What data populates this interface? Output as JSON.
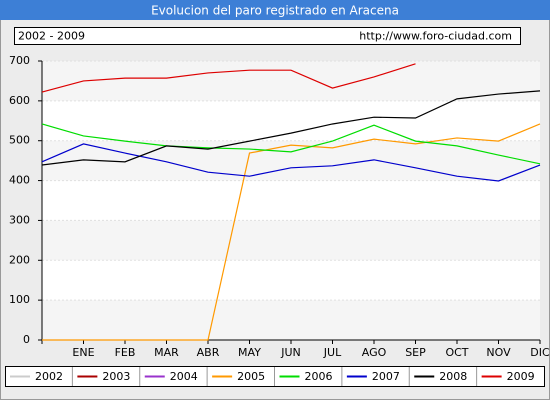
{
  "chart_data": {
    "type": "line",
    "title": "Evolucion del paro registrado en Aracena",
    "subtitle": "2002 - 2009",
    "source": "http://www.foro-ciudad.com",
    "categories": [
      null,
      "ENE",
      "FEB",
      "MAR",
      "ABR",
      "MAY",
      "JUN",
      "JUL",
      "AGO",
      "SEP",
      "OCT",
      "NOV",
      "DIC"
    ],
    "ylim": [
      0,
      700
    ],
    "yticks": [
      0,
      100,
      200,
      300,
      400,
      500,
      600,
      700
    ],
    "grid": true,
    "series": [
      {
        "name": "2002",
        "color": "#cccccc",
        "values": [
          null,
          null,
          null,
          null,
          null,
          null,
          null,
          null,
          null,
          null,
          null,
          null,
          null
        ]
      },
      {
        "name": "2003",
        "color": "#aa0000",
        "values": [
          null,
          null,
          null,
          null,
          null,
          null,
          null,
          null,
          null,
          null,
          null,
          null,
          null
        ]
      },
      {
        "name": "2004",
        "color": "#9933cc",
        "values": [
          null,
          null,
          null,
          null,
          null,
          null,
          null,
          null,
          null,
          null,
          null,
          null,
          null
        ]
      },
      {
        "name": "2005",
        "color": "#ff9900",
        "values": [
          0,
          0,
          0,
          0,
          0,
          469,
          489,
          482,
          504,
          492,
          507,
          499,
          542
        ]
      },
      {
        "name": "2006",
        "color": "#00dd00",
        "values": [
          542,
          512,
          499,
          487,
          482,
          479,
          472,
          499,
          539,
          499,
          487,
          464,
          442
        ]
      },
      {
        "name": "2007",
        "color": "#0000cc",
        "values": [
          447,
          492,
          469,
          447,
          421,
          411,
          432,
          437,
          452,
          432,
          411,
          399,
          439
        ]
      },
      {
        "name": "2008",
        "color": "#000000",
        "values": [
          439,
          452,
          447,
          487,
          479,
          499,
          519,
          542,
          559,
          557,
          605,
          617,
          625
        ]
      },
      {
        "name": "2009",
        "color": "#dd0000",
        "values": [
          622,
          650,
          657,
          657,
          670,
          677,
          677,
          632,
          660,
          693,
          null,
          null,
          null
        ]
      }
    ]
  }
}
